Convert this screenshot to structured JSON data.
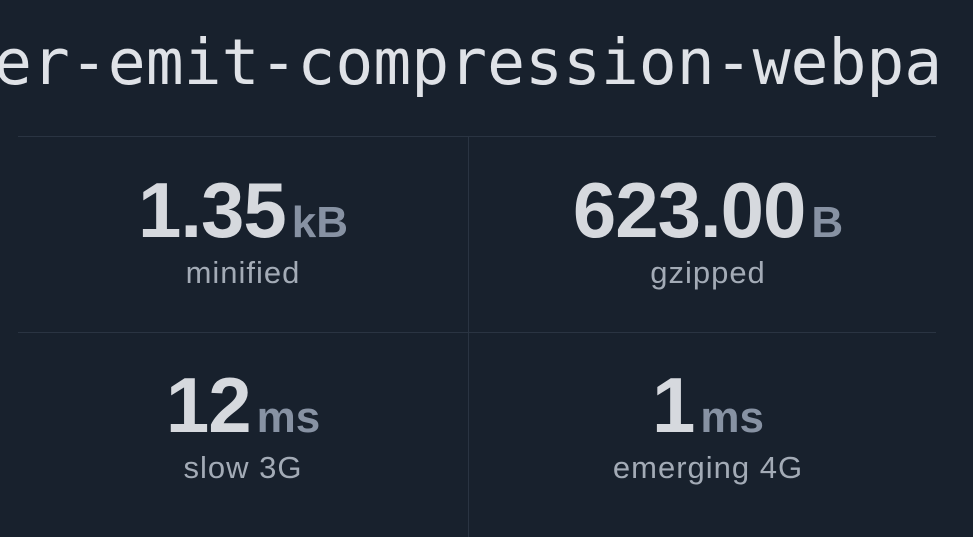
{
  "title": "er-emit-compression-webpa",
  "stats": [
    {
      "value": "1.35",
      "unit": "kB",
      "label": "minified"
    },
    {
      "value": "623.00",
      "unit": "B",
      "label": "gzipped"
    },
    {
      "value": "12",
      "unit": "ms",
      "label": "slow 3G"
    },
    {
      "value": "1",
      "unit": "ms",
      "label": "emerging 4G"
    }
  ],
  "colors": {
    "background": "#18212d",
    "value": "#d6d9de",
    "unit": "#8792a3",
    "label": "#a3abb6"
  }
}
